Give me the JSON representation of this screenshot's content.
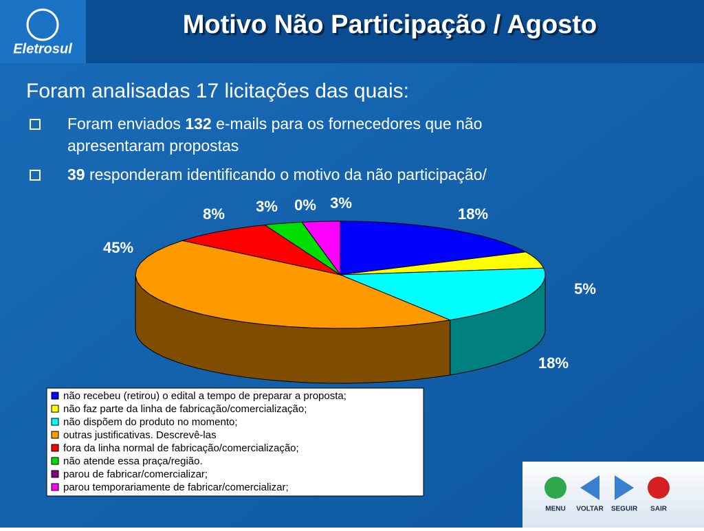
{
  "header": {
    "logo": "Eletrosul",
    "title": "Motivo Não Participação / Agosto"
  },
  "intro": "Foram analisadas 17 licitações das quais:",
  "bullets": [
    {
      "before": "Foram enviados ",
      "bold": "132",
      "after": " e-mails para os fornecedores que não apresentaram propostas"
    },
    {
      "before": "",
      "bold": "39",
      "after": " responderam identificando o motivo da não participação/"
    }
  ],
  "chart_data": {
    "type": "pie3d",
    "categories": [
      "não recebeu (retirou) o edital a tempo de preparar a proposta;",
      "não faz parte da linha de fabricação/comercialização;",
      "não dispõem do produto no momento;",
      "outras justificativas. Descrevê-las",
      "fora da linha normal de fabricação/comercialização;",
      "não atende essa praça/região.",
      "parou de fabricar/comercializar;",
      "parou temporariamente de fabricar/comercializar;"
    ],
    "values": [
      18,
      5,
      18,
      45,
      8,
      3,
      0,
      3
    ],
    "value_labels": [
      "18%",
      "5%",
      "18%",
      "45%",
      "8%",
      "3%",
      "0%",
      "3%"
    ],
    "colors": [
      "#0000ff",
      "#ffff00",
      "#00ffff",
      "#ff9900",
      "#ff0000",
      "#00dd00",
      "#800080",
      "#ff00ff"
    ],
    "legend": "bottom-left"
  },
  "nav": [
    "MENU",
    "VOLTAR",
    "SEGUIR",
    "SAIR"
  ]
}
